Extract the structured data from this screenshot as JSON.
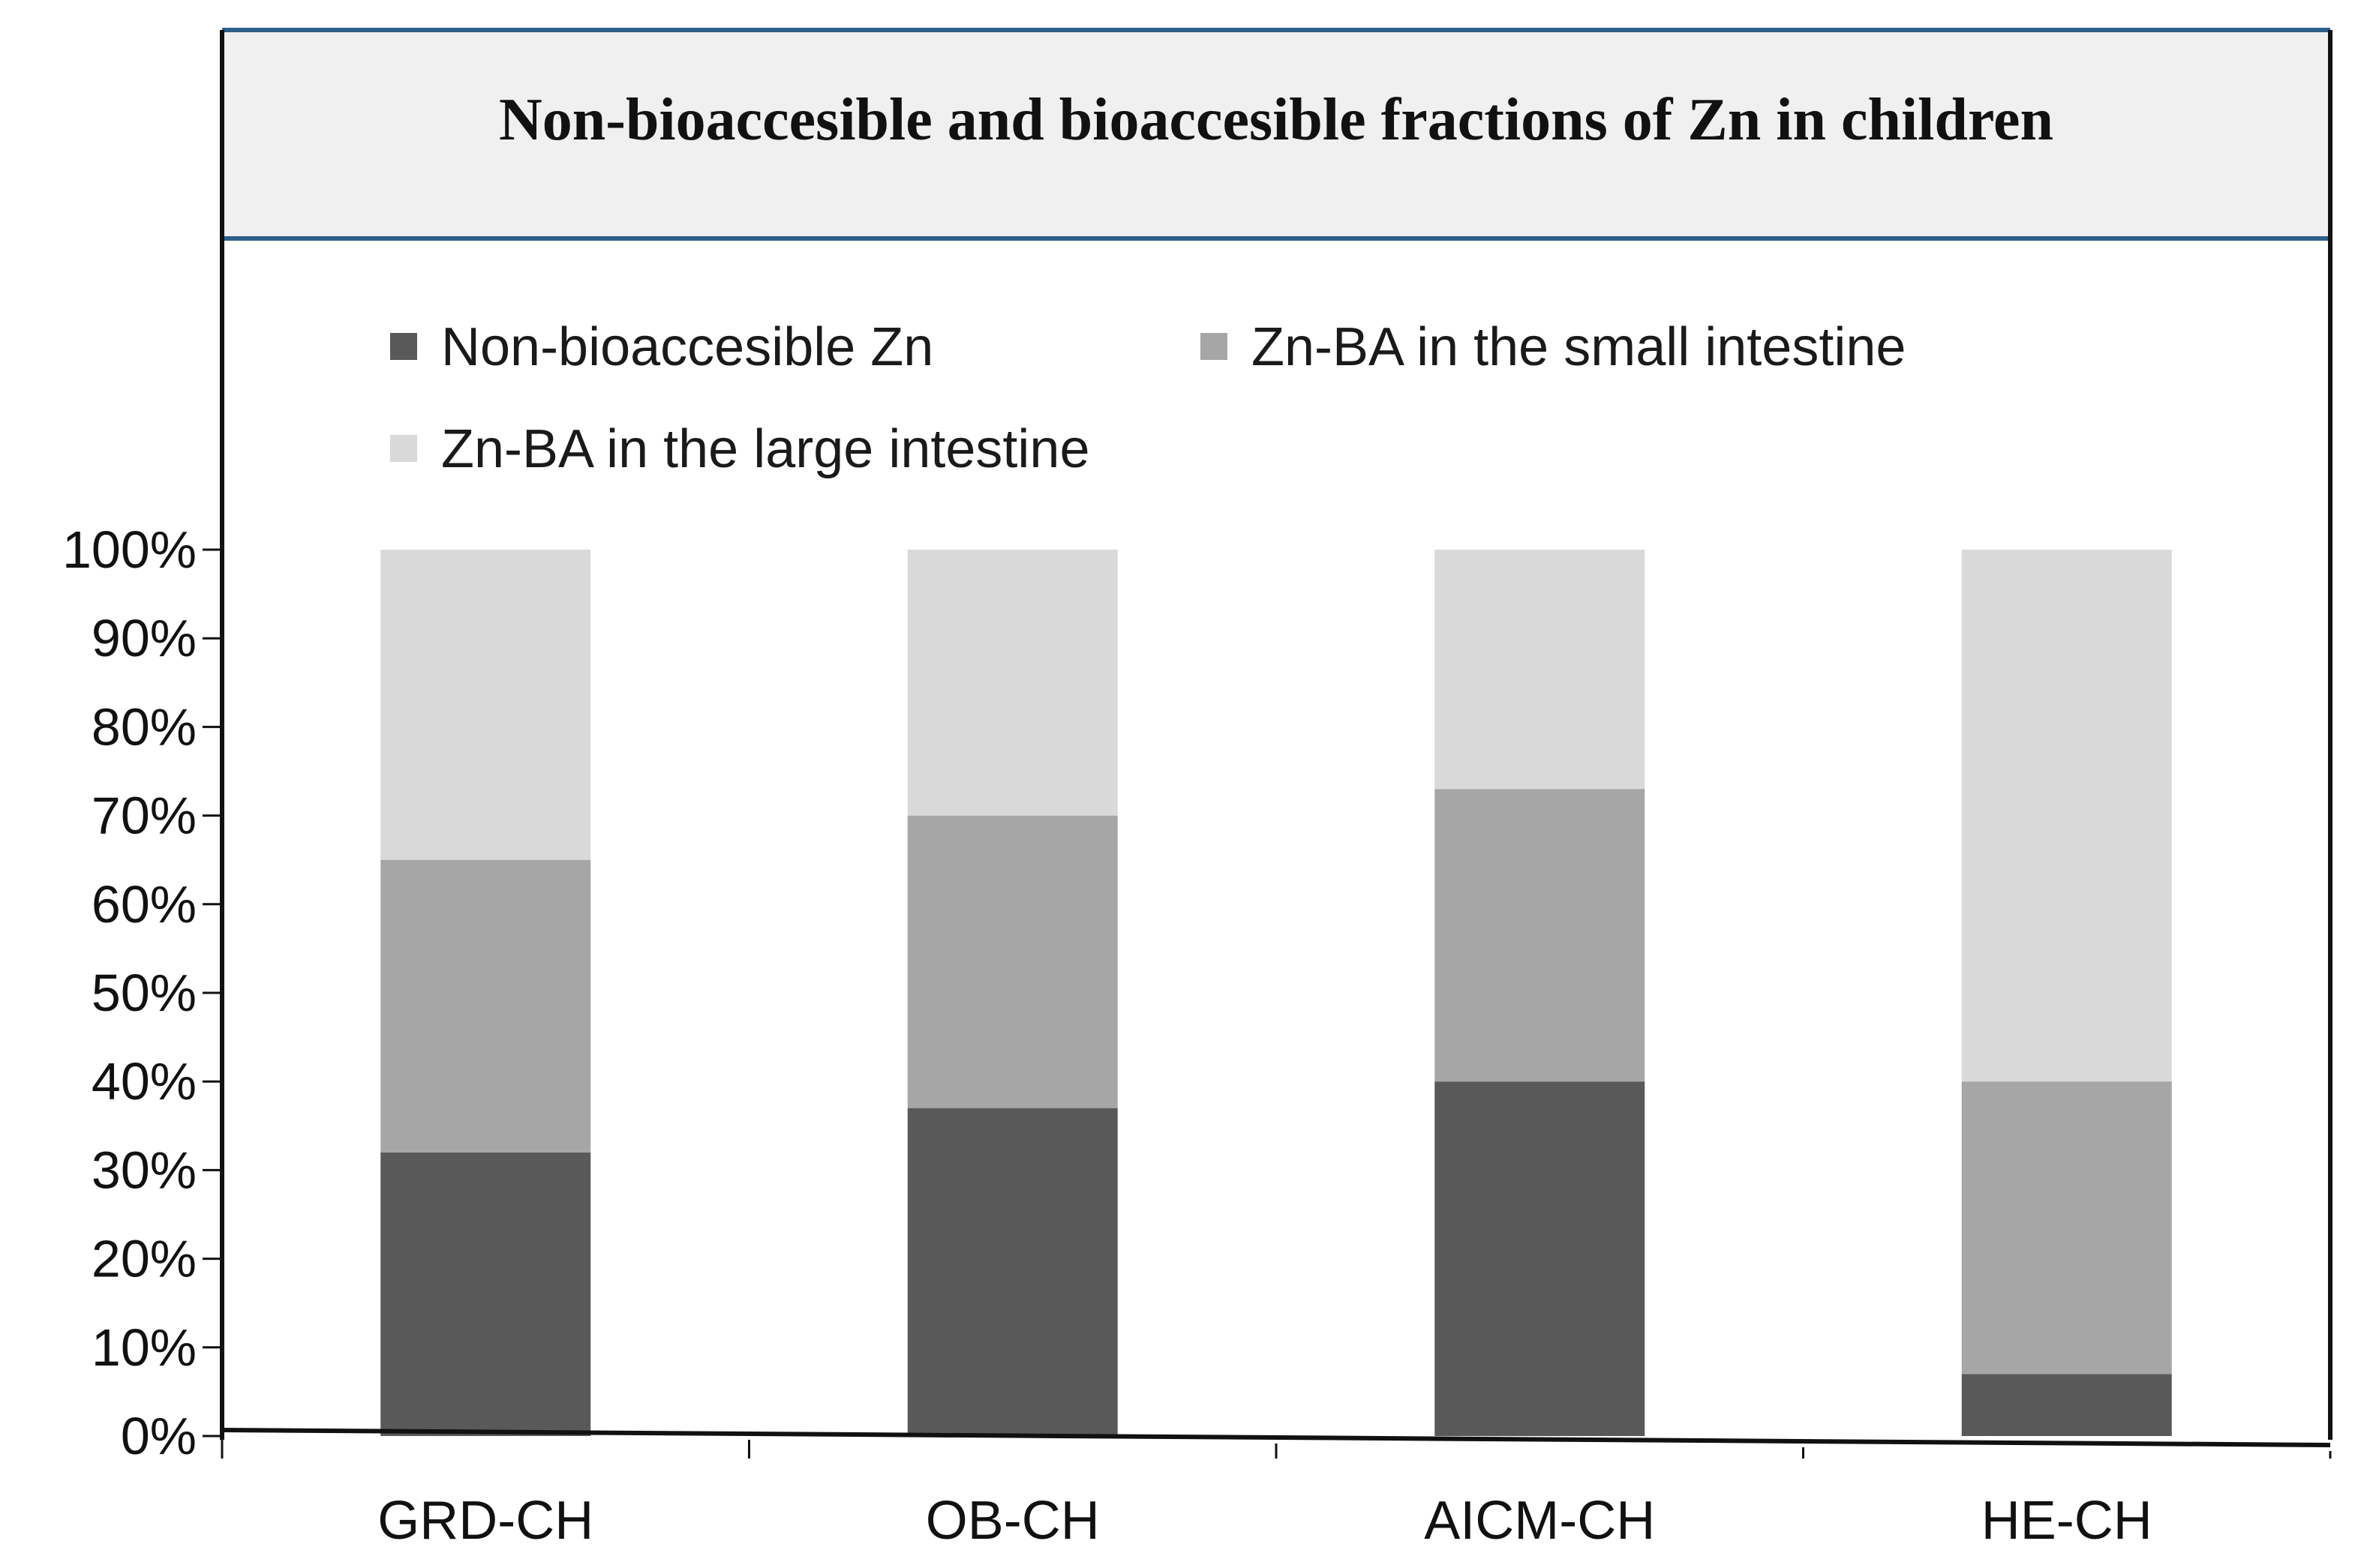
{
  "chart_data": {
    "type": "bar",
    "stacked": true,
    "title": "Non-bioaccesible  and bioaccesible  fractions of Zn in children",
    "categories": [
      "GRD-CH",
      "OB-CH",
      "AICM-CH",
      "HE-CH"
    ],
    "series": [
      {
        "name": "Non-bioaccesible Zn",
        "color": "#595959",
        "values": [
          32,
          37,
          40,
          7
        ]
      },
      {
        "name": "Zn-BA in the small intestine",
        "color": "#a6a6a6",
        "values": [
          33,
          33,
          33,
          33
        ]
      },
      {
        "name": "Zn-BA in the large intestine",
        "color": "#d9d9d9",
        "values": [
          35,
          30,
          27,
          60
        ]
      }
    ],
    "yticks": [
      "0%",
      "10%",
      "20%",
      "30%",
      "40%",
      "50%",
      "60%",
      "70%",
      "80%",
      "90%",
      "100%"
    ],
    "ylim": [
      0,
      100
    ],
    "legend_position": "top",
    "grid": false,
    "colors": {
      "title_band": "#f0f0f0",
      "title_rule": "#2e5f8a",
      "frame": "#111111"
    }
  }
}
